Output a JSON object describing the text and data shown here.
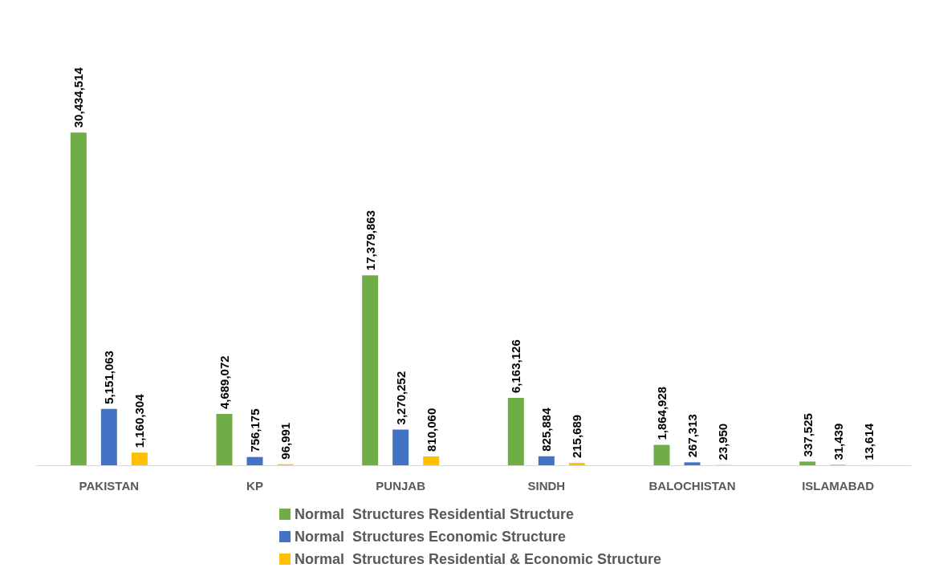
{
  "chart_data": {
    "type": "bar",
    "categories": [
      "PAKISTAN",
      "KP",
      "PUNJAB",
      "SINDH",
      "BALOCHISTAN",
      "ISLAMABAD"
    ],
    "series": [
      {
        "name": "Normal  Structures Residential Structure",
        "color": "#70ad47",
        "values": [
          30434514,
          4689072,
          17379863,
          6163126,
          1864928,
          337525
        ],
        "value_labels": [
          "30,434,514",
          "4,689,072",
          "17,379,863",
          "6,163,126",
          "1,864,928",
          "337,525"
        ]
      },
      {
        "name": "Normal  Structures Economic Structure",
        "color": "#4472c4",
        "values": [
          5151063,
          756175,
          3270252,
          825884,
          267313,
          31439
        ],
        "value_labels": [
          "5,151,063",
          "756,175",
          "3,270,252",
          "825,884",
          "267,313",
          "31,439"
        ]
      },
      {
        "name": "Normal  Structures Residential & Economic Structure",
        "color": "#ffc000",
        "values": [
          1160304,
          96991,
          810060,
          215689,
          23950,
          13614
        ],
        "value_labels": [
          "1,160,304",
          "96,991",
          "810,060",
          "215,689",
          "23,950",
          "13,614"
        ]
      }
    ],
    "legend": "bottom",
    "tick_labels": "x"
  }
}
